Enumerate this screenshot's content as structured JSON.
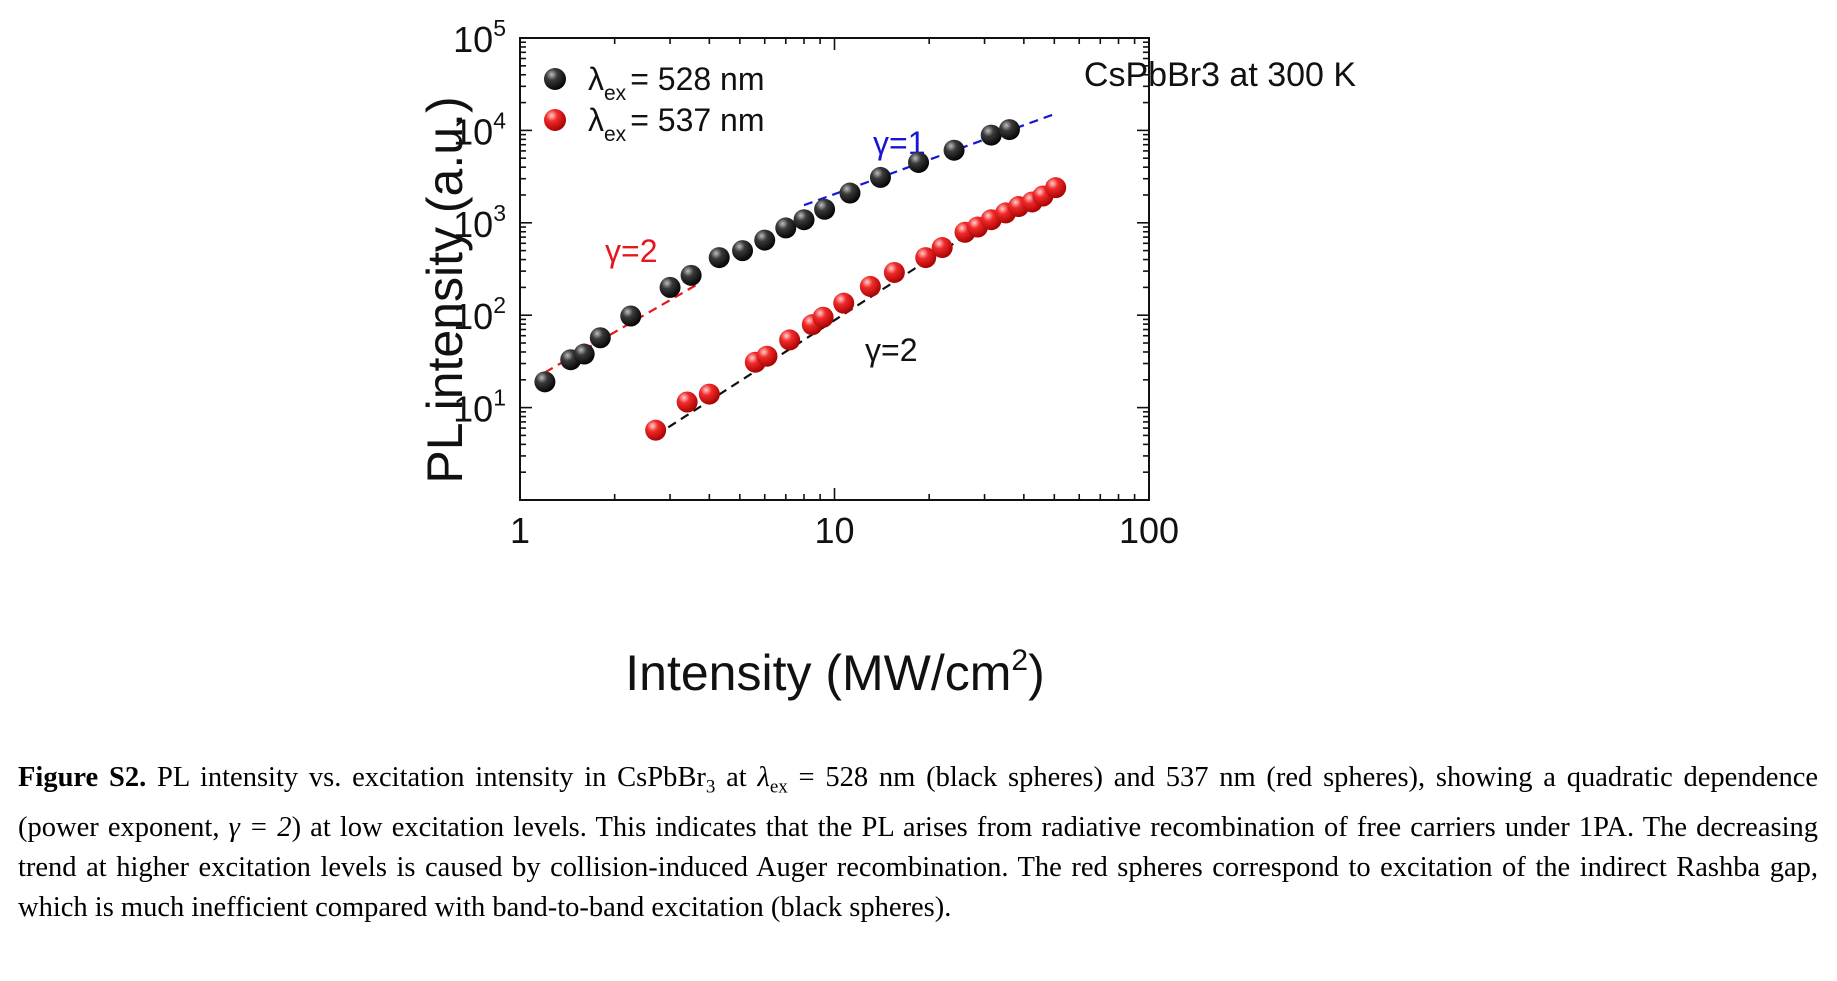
{
  "chart_data": {
    "type": "scatter",
    "x_scale": "log",
    "y_scale": "log",
    "xlim": [
      1,
      100
    ],
    "ylim": [
      1,
      100000
    ],
    "xlabel": "Intensity (MW/cm",
    "xlabel_sup": "2",
    "xlabel_end": ")",
    "ylabel": "PL intensity (a.u.)",
    "x_ticks": [
      {
        "value": 1,
        "label": "1"
      },
      {
        "value": 10,
        "label": "10"
      },
      {
        "value": 100,
        "label": "100"
      }
    ],
    "y_ticks": [
      {
        "value": 10,
        "base": "10",
        "exp": "1"
      },
      {
        "value": 100,
        "base": "10",
        "exp": "2"
      },
      {
        "value": 1000,
        "base": "10",
        "exp": "3"
      },
      {
        "value": 10000,
        "base": "10",
        "exp": "4"
      },
      {
        "value": 100000,
        "base": "10",
        "exp": "5"
      }
    ],
    "annotation": "CsPbBr3 at 300 K",
    "legend_position": "top-left",
    "series": [
      {
        "name": "λex = 528 nm",
        "legend_symbol": "λ",
        "legend_sub": "ex",
        "legend_value": "= 528 nm",
        "color": "#111111",
        "x": [
          1.2,
          1.45,
          1.6,
          1.8,
          2.25,
          3.0,
          3.5,
          4.3,
          5.1,
          6.0,
          7.0,
          8.0,
          9.3,
          11.2,
          14.0,
          18.5,
          24.0,
          31.5,
          36.0
        ],
        "y": [
          19,
          33,
          38,
          57,
          98,
          200,
          270,
          420,
          500,
          650,
          880,
          1080,
          1400,
          2100,
          3100,
          4500,
          6100,
          8900,
          10200
        ]
      },
      {
        "name": "λex = 537 nm",
        "legend_symbol": "λ",
        "legend_sub": "ex",
        "legend_value": "= 537 nm",
        "color": "#e8161b",
        "x": [
          2.7,
          3.4,
          4.0,
          5.6,
          6.1,
          7.2,
          8.5,
          9.2,
          10.7,
          13.0,
          15.5,
          19.5,
          22.0,
          26.0,
          28.5,
          31.5,
          35.0,
          38.5,
          42.5,
          46.0,
          50.5
        ],
        "y": [
          5.7,
          11.5,
          14,
          31,
          36,
          54,
          79,
          95,
          135,
          205,
          290,
          420,
          540,
          790,
          900,
          1080,
          1280,
          1500,
          1680,
          1950,
          2400
        ]
      }
    ],
    "fit_lines": [
      {
        "label": "γ=2",
        "color": "#e8161b",
        "x": [
          1.2,
          3.7
        ],
        "y": [
          24,
          220
        ]
      },
      {
        "label": "γ=1",
        "color": "#1515d8",
        "x": [
          8.0,
          50.0
        ],
        "y": [
          1550,
          15000
        ]
      },
      {
        "label": "γ=2",
        "color": "#111111",
        "x": [
          2.7,
          50.0
        ],
        "y": [
          5.0,
          3000
        ]
      }
    ]
  },
  "caption": {
    "label": "Figure S2.",
    "t1": " PL intensity vs. excitation intensity in CsPbBr",
    "sub3": "3",
    "t2": " at ",
    "lambda": "λ",
    "lambda_sub": "ex",
    "t3": " = 528 nm (black spheres) and 537 nm (red spheres), showing a quadratic dependence (power exponent, ",
    "gamma": "γ = 2",
    "t4": ") at low excitation levels. This indicates that the PL arises from radiative recombination of free carriers under 1PA. The decreasing trend at higher excitation levels is caused by collision-induced Auger recombination. The red spheres correspond to excitation of the indirect Rashba gap, which is much inefficient compared with band-to-band excitation (black spheres)."
  }
}
